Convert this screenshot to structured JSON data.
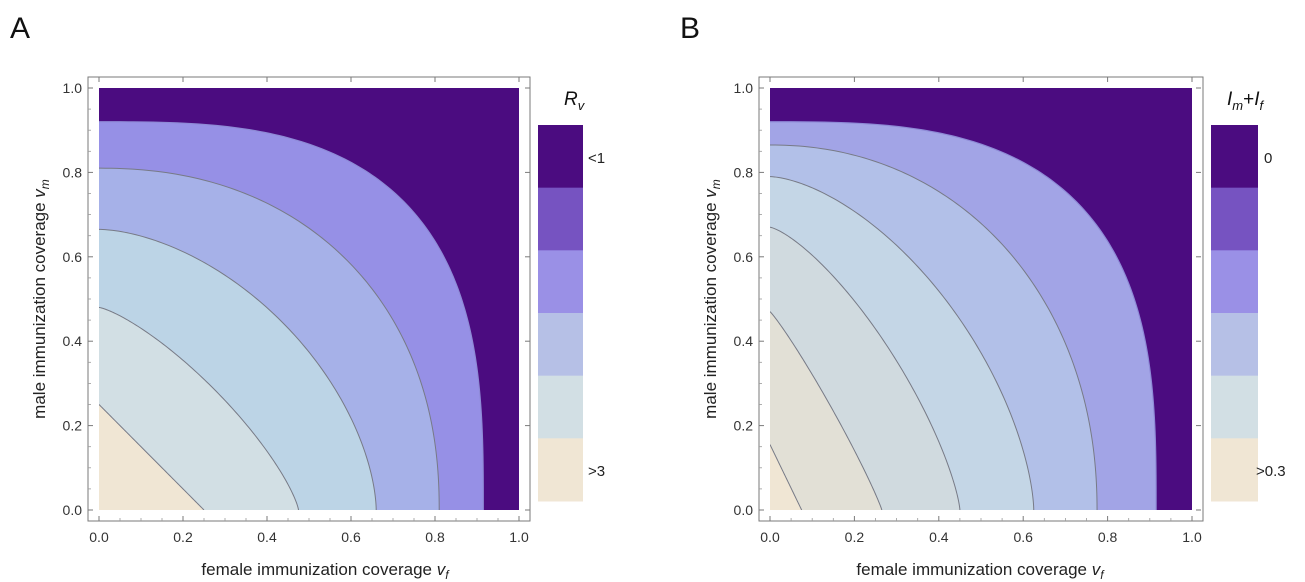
{
  "chart_data": [
    {
      "type": "contour",
      "panel_label": "A",
      "xlabel": "female immunization coverage",
      "xlabel_var": "v",
      "xlabel_sub": "f",
      "ylabel": "male immunization coverage",
      "ylabel_var": "v",
      "ylabel_sub": "m",
      "xlim": [
        0,
        1
      ],
      "ylim": [
        0,
        1
      ],
      "xticks": [
        "0.0",
        "0.2",
        "0.4",
        "0.6",
        "0.8",
        "1.0"
      ],
      "yticks": [
        "0.0",
        "0.2",
        "0.4",
        "0.6",
        "0.8",
        "1.0"
      ],
      "legend_title_main": "R",
      "legend_title_sub": "v",
      "legend_top_label": "<1",
      "legend_bottom_label": ">3",
      "legend_colors": [
        "#4b0c80",
        "#7653c1",
        "#9a90e6",
        "#b6c0e6",
        "#d2dfe4",
        "#f0e6d4"
      ],
      "contours": [
        {
          "x_intercept": 0.25,
          "y_intercept": 0.25,
          "exponent": 1.0
        },
        {
          "x_intercept": 0.475,
          "y_intercept": 0.48,
          "exponent": 1.3
        },
        {
          "x_intercept": 0.66,
          "y_intercept": 0.665,
          "exponent": 1.7
        },
        {
          "x_intercept": 0.81,
          "y_intercept": 0.81,
          "exponent": 2.2
        },
        {
          "x_intercept": 0.915,
          "y_intercept": 0.92,
          "exponent": 3.0
        }
      ],
      "region_colors": [
        "#f0e6d4",
        "#d2dfe4",
        "#bcd4e6",
        "#a6b1e8",
        "#9690e6",
        "#4b0c80"
      ]
    },
    {
      "type": "contour",
      "panel_label": "B",
      "xlabel": "female immunization coverage",
      "xlabel_var": "v",
      "xlabel_sub": "f",
      "ylabel": "male immunization coverage",
      "ylabel_var": "v",
      "ylabel_sub": "m",
      "xlim": [
        0,
        1
      ],
      "ylim": [
        0,
        1
      ],
      "xticks": [
        "0.0",
        "0.2",
        "0.4",
        "0.6",
        "0.8",
        "1.0"
      ],
      "yticks": [
        "0.0",
        "0.2",
        "0.4",
        "0.6",
        "0.8",
        "1.0"
      ],
      "legend_title_main": "I",
      "legend_title_sub1": "m",
      "legend_title_plus": "+",
      "legend_title_sub2": "f",
      "legend_top_label": "0",
      "legend_bottom_label": ">0.3",
      "legend_colors": [
        "#4b0c80",
        "#7653c1",
        "#9a90e6",
        "#b6c0e6",
        "#d2dfe4",
        "#f0e6d4"
      ],
      "contours": [
        {
          "x_intercept": 0.075,
          "y_intercept": 0.155,
          "exponent": 1.0
        },
        {
          "x_intercept": 0.265,
          "y_intercept": 0.47,
          "exponent": 1.1
        },
        {
          "x_intercept": 0.45,
          "y_intercept": 0.67,
          "exponent": 1.35
        },
        {
          "x_intercept": 0.625,
          "y_intercept": 0.79,
          "exponent": 1.6
        },
        {
          "x_intercept": 0.775,
          "y_intercept": 0.865,
          "exponent": 2.1
        },
        {
          "x_intercept": 0.915,
          "y_intercept": 0.92,
          "exponent": 3.0
        }
      ],
      "region_colors": [
        "#f0e6d4",
        "#e2e0d6",
        "#d0dadf",
        "#c4d6e6",
        "#b2c0e8",
        "#a2a4e6",
        "#4b0c80"
      ]
    }
  ]
}
